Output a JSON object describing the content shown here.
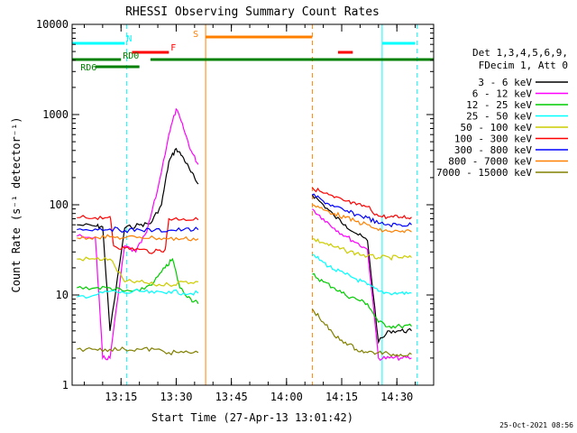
{
  "chart_data": {
    "type": "line",
    "title": "RHESSI Observing Summary Count Rates",
    "xlabel": "Start Time (27-Apr-13 13:01:42)",
    "ylabel": "Count Rate (s⁻¹ detector⁻¹)",
    "y_scale": "log",
    "ylim": [
      1,
      10000
    ],
    "xlim": [
      "13:01:42",
      "14:40:00"
    ],
    "x_ticks": [
      "13:15",
      "13:30",
      "13:45",
      "14:00",
      "14:15",
      "14:30"
    ],
    "y_ticks": [
      "1",
      "10",
      "100",
      "1000",
      "10000"
    ],
    "footer_timestamp": "25-Oct-2021 08:56",
    "legend_header": [
      "Det 1,3,4,5,6,9,",
      "FDecim 1, Att 0"
    ],
    "legend_position": "right",
    "series": [
      {
        "name": "3 - 6 keV",
        "color": "#000000",
        "x": [
          "13:03",
          "13:08",
          "13:10",
          "13:12",
          "13:16",
          "13:20",
          "13:23",
          "13:26",
          "13:28",
          "13:30",
          "13:32",
          "13:34",
          "13:36",
          "14:07",
          "14:10",
          "14:13",
          "14:16",
          "14:19",
          "14:22",
          "14:25",
          "14:28",
          "14:31",
          "14:34"
        ],
        "y": [
          60,
          58,
          57,
          4,
          55,
          60,
          62,
          100,
          300,
          420,
          330,
          230,
          170,
          130,
          100,
          75,
          60,
          48,
          40,
          3,
          4,
          4,
          4
        ]
      },
      {
        "name": "6 - 12 keV",
        "color": "#ff00ff",
        "x": [
          "13:03",
          "13:08",
          "13:10",
          "13:12",
          "13:16",
          "13:19",
          "13:22",
          "13:25",
          "13:28",
          "13:30",
          "13:32",
          "13:34",
          "13:36",
          "14:07",
          "14:10",
          "14:13",
          "14:16",
          "14:19",
          "14:22",
          "14:25",
          "14:28",
          "14:31",
          "14:34"
        ],
        "y": [
          45,
          44,
          2,
          2,
          35,
          30,
          50,
          150,
          600,
          1150,
          700,
          400,
          280,
          90,
          70,
          55,
          45,
          38,
          32,
          2,
          2,
          2,
          2
        ]
      },
      {
        "name": "12 - 25 keV",
        "color": "#00cc00",
        "x": [
          "13:03",
          "13:08",
          "13:12",
          "13:16",
          "13:20",
          "13:24",
          "13:27",
          "13:29",
          "13:31",
          "13:34",
          "13:36",
          "14:07",
          "14:10",
          "14:13",
          "14:16",
          "14:19",
          "14:22",
          "14:25",
          "14:28",
          "14:31",
          "14:34"
        ],
        "y": [
          12,
          12,
          12,
          11,
          11,
          14,
          20,
          25,
          12,
          9,
          8,
          17,
          14,
          12,
          10,
          9,
          8,
          5,
          4.5,
          4.5,
          4.5
        ]
      },
      {
        "name": "25 - 50 keV",
        "color": "#00ffff",
        "x": [
          "13:03",
          "13:08",
          "13:12",
          "13:16",
          "13:20",
          "13:24",
          "13:28",
          "13:32",
          "13:36",
          "14:07",
          "14:10",
          "14:13",
          "14:16",
          "14:19",
          "14:22",
          "14:25",
          "14:28",
          "14:31",
          "14:34"
        ],
        "y": [
          9.5,
          10,
          11,
          10.5,
          11,
          10.5,
          11,
          10.5,
          10.5,
          28,
          23,
          19,
          17,
          15,
          13,
          11,
          10.5,
          10.5,
          10.5
        ]
      },
      {
        "name": "50 - 100 keV",
        "color": "#cccc00",
        "x": [
          "13:03",
          "13:08",
          "13:12",
          "13:16",
          "13:20",
          "13:24",
          "13:28",
          "13:32",
          "13:36",
          "14:07",
          "14:10",
          "14:13",
          "14:16",
          "14:19",
          "14:22",
          "14:25",
          "14:28",
          "14:31",
          "14:34"
        ],
        "y": [
          25,
          25,
          25,
          14,
          14,
          13,
          13,
          14,
          14,
          42,
          38,
          34,
          31,
          29,
          27,
          26,
          26,
          26,
          26
        ]
      },
      {
        "name": "100 - 300 keV",
        "color": "#ff0000",
        "x": [
          "13:03",
          "13:08",
          "13:12",
          "13:13",
          "13:16",
          "13:20",
          "13:24",
          "13:27",
          "13:28",
          "13:32",
          "13:36",
          "14:07",
          "14:10",
          "14:13",
          "14:16",
          "14:19",
          "14:22",
          "14:25",
          "14:28",
          "14:31",
          "14:34"
        ],
        "y": [
          72,
          72,
          74,
          35,
          33,
          32,
          30,
          32,
          70,
          70,
          68,
          155,
          135,
          120,
          110,
          100,
          95,
          75,
          73,
          73,
          73
        ]
      },
      {
        "name": "300 - 800 keV",
        "color": "#0000ff",
        "x": [
          "13:03",
          "13:08",
          "13:12",
          "13:16",
          "13:20",
          "13:24",
          "13:28",
          "13:32",
          "13:36",
          "14:07",
          "14:10",
          "14:13",
          "14:16",
          "14:19",
          "14:22",
          "14:25",
          "14:28",
          "14:31",
          "14:34"
        ],
        "y": [
          53,
          54,
          54,
          52,
          53,
          52,
          52,
          53,
          53,
          130,
          110,
          95,
          85,
          78,
          72,
          62,
          60,
          60,
          60
        ]
      },
      {
        "name": "800 - 7000 keV",
        "color": "#ff8000",
        "x": [
          "13:03",
          "13:08",
          "13:12",
          "13:16",
          "13:20",
          "13:24",
          "13:28",
          "13:32",
          "13:36",
          "14:07",
          "14:10",
          "14:13",
          "14:16",
          "14:19",
          "14:22",
          "14:25",
          "14:28",
          "14:31",
          "14:34"
        ],
        "y": [
          43,
          44,
          44,
          43,
          44,
          43,
          42,
          42,
          42,
          100,
          88,
          80,
          72,
          65,
          60,
          52,
          51,
          50,
          50
        ]
      },
      {
        "name": "7000 - 15000 keV",
        "color": "#808000",
        "x": [
          "13:03",
          "13:08",
          "13:12",
          "13:16",
          "13:20",
          "13:24",
          "13:28",
          "13:32",
          "13:36",
          "14:07",
          "14:10",
          "14:13",
          "14:16",
          "14:19",
          "14:22",
          "14:25",
          "14:28",
          "14:31",
          "14:34"
        ],
        "y": [
          2.5,
          2.5,
          2.5,
          2.5,
          2.5,
          2.5,
          2.3,
          2.3,
          2.3,
          7,
          5,
          3.5,
          3,
          2.5,
          2.3,
          2.3,
          2.2,
          2.2,
          2.2
        ]
      }
    ],
    "flag_bars": [
      {
        "label": "N",
        "color": "#00ffff",
        "segments": [
          [
            "13:01:42",
            "13:16"
          ],
          [
            "14:26",
            "14:35"
          ]
        ],
        "level": 1
      },
      {
        "label": "F",
        "color": "#ff0000",
        "segments": [
          [
            "13:18",
            "13:28"
          ],
          [
            "14:14",
            "14:18"
          ]
        ],
        "level": 2
      },
      {
        "label": "S",
        "color": "#ff8000",
        "segments": [
          [
            "13:38",
            "14:07"
          ]
        ],
        "level": 3
      },
      {
        "label": "RD0",
        "color": "#008000",
        "segments": [
          [
            "13:01:42",
            "13:15"
          ],
          [
            "13:23",
            "14:40"
          ]
        ],
        "level": 4
      },
      {
        "label": "RD6",
        "color": "#008000",
        "segments": [
          [
            "13:08",
            "13:20"
          ]
        ],
        "level": 5
      }
    ],
    "vertical_markers": [
      {
        "time": "13:01:42",
        "color": "#00ffff",
        "style": "solid"
      },
      {
        "time": "13:16:30",
        "color": "#00ffff",
        "style": "dashed"
      },
      {
        "time": "13:38:00",
        "color": "#ff8000",
        "style": "solid"
      },
      {
        "time": "14:07:00",
        "color": "#ff8000",
        "style": "dashed"
      },
      {
        "time": "14:26:00",
        "color": "#00ffff",
        "style": "solid"
      },
      {
        "time": "14:35:30",
        "color": "#00ffff",
        "style": "dashed"
      }
    ]
  }
}
